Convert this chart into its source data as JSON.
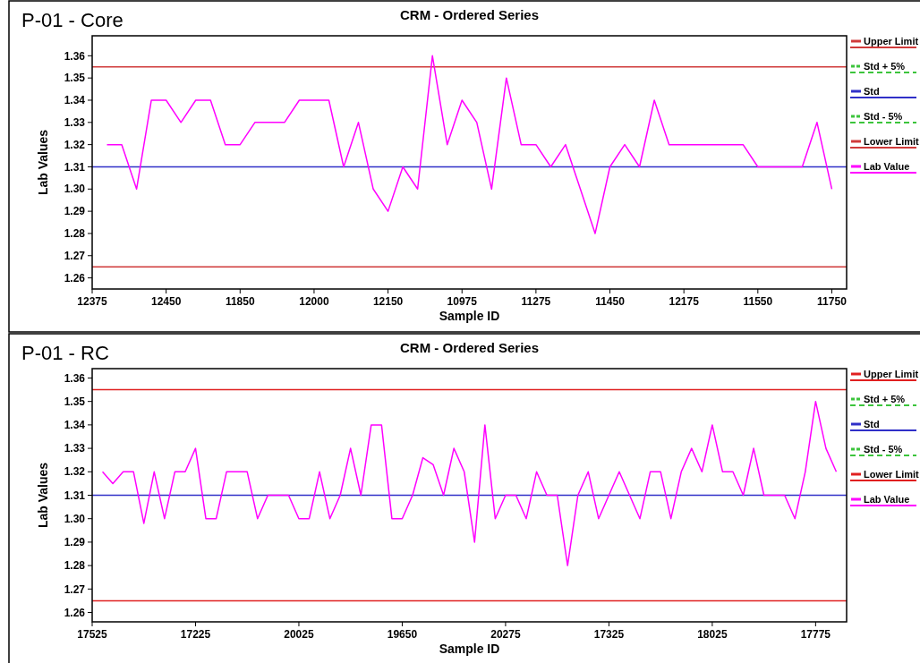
{
  "chart_data": [
    {
      "type": "line",
      "title": "CRM - Ordered Series",
      "subtitle": "P-01 - Core",
      "xlabel": "Sample ID",
      "ylabel": "Lab Values",
      "categories": [
        "12375",
        null,
        null,
        null,
        null,
        "12450",
        null,
        null,
        null,
        null,
        "11850",
        null,
        null,
        null,
        null,
        "12000",
        null,
        null,
        null,
        null,
        "12150",
        null,
        null,
        null,
        null,
        "10975",
        null,
        null,
        null,
        null,
        "11275",
        null,
        null,
        null,
        null,
        "11450",
        null,
        null,
        null,
        null,
        "12175",
        null,
        null,
        null,
        null,
        "11550",
        null,
        null,
        null,
        null,
        "11750",
        null
      ],
      "ylim": [
        1.255,
        1.369
      ],
      "yticks": [
        1.26,
        1.27,
        1.28,
        1.29,
        {
          "value": 1.3,
          "label": "1.30"
        },
        1.31,
        1.32,
        1.33,
        1.34,
        1.35,
        1.36
      ],
      "ref_lines": [
        {
          "axis": "y",
          "value": 1.355,
          "label": "Upper Limit",
          "color": "#d03a3a"
        },
        {
          "axis": "y",
          "value": null,
          "label": "Std + 5%",
          "color": "#3cc43c",
          "line_style": "dashed"
        },
        {
          "axis": "y",
          "value": 1.31,
          "label": "Std",
          "color": "#3030c8"
        },
        {
          "axis": "y",
          "value": null,
          "label": "Std - 5%",
          "color": "#3cc43c",
          "line_style": "dashed"
        },
        {
          "axis": "y",
          "value": 1.265,
          "label": "Lower Limit",
          "color": "#d03a3a"
        }
      ],
      "series": [
        {
          "name": "Lab Value",
          "color": "#ff00ff",
          "values": [
            null,
            1.32,
            1.32,
            1.3,
            1.34,
            1.34,
            1.33,
            1.34,
            1.34,
            1.32,
            1.32,
            1.33,
            1.33,
            1.33,
            1.34,
            1.34,
            1.34,
            1.31,
            1.33,
            1.3,
            1.29,
            1.31,
            1.3,
            1.36,
            1.32,
            1.34,
            1.33,
            1.3,
            1.35,
            1.32,
            1.32,
            1.31,
            1.32,
            1.3,
            1.28,
            1.31,
            1.32,
            1.31,
            1.34,
            1.32,
            1.32,
            1.32,
            1.32,
            1.32,
            1.32,
            1.31,
            1.31,
            1.31,
            1.31,
            1.33,
            1.3,
            null
          ]
        }
      ],
      "legend": "right",
      "grid": false
    },
    {
      "type": "line",
      "title": "CRM - Ordered Series",
      "subtitle": "P-01 - RC",
      "xlabel": "Sample ID",
      "ylabel": "Lab Values",
      "categories": [
        "17525",
        null,
        null,
        null,
        null,
        null,
        null,
        null,
        null,
        null,
        "17225",
        null,
        null,
        null,
        null,
        null,
        null,
        null,
        null,
        null,
        "20025",
        null,
        null,
        null,
        null,
        null,
        null,
        null,
        null,
        null,
        "19650",
        null,
        null,
        null,
        null,
        null,
        null,
        null,
        null,
        null,
        "20275",
        null,
        null,
        null,
        null,
        null,
        null,
        null,
        null,
        null,
        "17325",
        null,
        null,
        null,
        null,
        null,
        null,
        null,
        null,
        null,
        "18025",
        null,
        null,
        null,
        null,
        null,
        null,
        null,
        null,
        null,
        "17775",
        null,
        null,
        null
      ],
      "ylim": [
        1.256,
        1.364
      ],
      "yticks": [
        1.26,
        1.27,
        1.28,
        1.29,
        {
          "value": 1.3,
          "label": "1.30"
        },
        1.31,
        1.32,
        1.33,
        1.34,
        1.35,
        1.36
      ],
      "ref_lines": [
        {
          "axis": "y",
          "value": 1.355,
          "label": "Upper Limit",
          "color": "#e02020"
        },
        {
          "axis": "y",
          "value": null,
          "label": "Std + 5%",
          "color": "#3cc43c",
          "line_style": "dashed"
        },
        {
          "axis": "y",
          "value": 1.31,
          "label": "Std",
          "color": "#3030c8"
        },
        {
          "axis": "y",
          "value": null,
          "label": "Std - 5%",
          "color": "#3cc43c",
          "line_style": "dashed"
        },
        {
          "axis": "y",
          "value": 1.265,
          "label": "Lower Limit",
          "color": "#e02020"
        }
      ],
      "series": [
        {
          "name": "Lab Value",
          "color": "#ff00ff",
          "values": [
            null,
            1.32,
            1.315,
            1.32,
            1.32,
            1.298,
            1.32,
            1.3,
            1.32,
            1.32,
            1.33,
            1.3,
            1.3,
            1.32,
            1.32,
            1.32,
            1.3,
            1.31,
            1.31,
            1.31,
            1.3,
            1.3,
            1.32,
            1.3,
            1.31,
            1.33,
            1.31,
            1.34,
            1.34,
            1.3,
            1.3,
            1.31,
            1.326,
            1.323,
            1.31,
            1.33,
            1.32,
            1.29,
            1.34,
            1.3,
            1.31,
            1.31,
            1.3,
            1.32,
            1.31,
            1.31,
            1.28,
            1.31,
            1.32,
            1.3,
            1.31,
            1.32,
            1.31,
            1.3,
            1.32,
            1.32,
            1.3,
            1.32,
            1.33,
            1.32,
            1.34,
            1.32,
            1.32,
            1.31,
            1.33,
            1.31,
            1.31,
            1.31,
            1.3,
            1.32,
            1.35,
            1.33,
            1.32,
            null
          ]
        }
      ],
      "legend": "right",
      "grid": false
    }
  ]
}
